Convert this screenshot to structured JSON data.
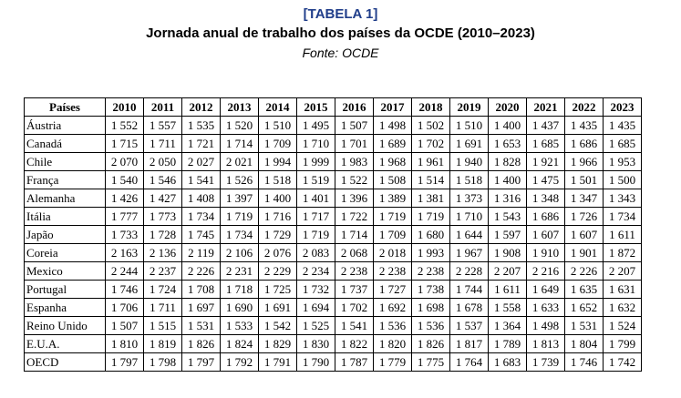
{
  "header": {
    "tag": "[TABELA 1]",
    "title": "Jornada anual de trabalho dos países da OCDE (2010–2023)",
    "source": "Fonte: OCDE"
  },
  "colors": {
    "tag": "#1f3d8a",
    "text": "#000000",
    "border": "#000000"
  },
  "table": {
    "country_header": "Países",
    "years": [
      "2010",
      "2011",
      "2012",
      "2013",
      "2014",
      "2015",
      "2016",
      "2017",
      "2018",
      "2019",
      "2020",
      "2021",
      "2022",
      "2023"
    ],
    "rows": [
      {
        "country": "Áustria",
        "values": [
          "1 552",
          "1 557",
          "1 535",
          "1 520",
          "1 510",
          "1 495",
          "1 507",
          "1 498",
          "1 502",
          "1 510",
          "1 400",
          "1 437",
          "1 435",
          "1 435"
        ]
      },
      {
        "country": "Canadá",
        "values": [
          "1 715",
          "1 711",
          "1 721",
          "1 714",
          "1 709",
          "1 710",
          "1 701",
          "1 689",
          "1 702",
          "1 691",
          "1 653",
          "1 685",
          "1 686",
          "1 685"
        ]
      },
      {
        "country": "Chile",
        "values": [
          "2 070",
          "2 050",
          "2 027",
          "2 021",
          "1 994",
          "1 999",
          "1 983",
          "1 968",
          "1 961",
          "1 940",
          "1 828",
          "1 921",
          "1 966",
          "1 953"
        ]
      },
      {
        "country": "França",
        "values": [
          "1 540",
          "1 546",
          "1 541",
          "1 526",
          "1 518",
          "1 519",
          "1 522",
          "1 508",
          "1 514",
          "1 518",
          "1 400",
          "1 475",
          "1 501",
          "1 500"
        ]
      },
      {
        "country": "Alemanha",
        "values": [
          "1 426",
          "1 427",
          "1 408",
          "1 397",
          "1 400",
          "1 401",
          "1 396",
          "1 389",
          "1 381",
          "1 373",
          "1 316",
          "1 348",
          "1 347",
          "1 343"
        ]
      },
      {
        "country": "Itália",
        "values": [
          "1 777",
          "1 773",
          "1 734",
          "1 719",
          "1 716",
          "1 717",
          "1 722",
          "1 719",
          "1 719",
          "1 710",
          "1 543",
          "1 686",
          "1 726",
          "1 734"
        ]
      },
      {
        "country": "Japão",
        "values": [
          "1 733",
          "1 728",
          "1 745",
          "1 734",
          "1 729",
          "1 719",
          "1 714",
          "1 709",
          "1 680",
          "1 644",
          "1 597",
          "1 607",
          "1 607",
          "1 611"
        ]
      },
      {
        "country": "Coreia",
        "values": [
          "2 163",
          "2 136",
          "2 119",
          "2 106",
          "2 076",
          "2 083",
          "2 068",
          "2 018",
          "1 993",
          "1 967",
          "1 908",
          "1 910",
          "1 901",
          "1 872"
        ]
      },
      {
        "country": "Mexico",
        "values": [
          "2 244",
          "2 237",
          "2 226",
          "2 231",
          "2 229",
          "2 234",
          "2 238",
          "2 238",
          "2 238",
          "2 228",
          "2 207",
          "2 216",
          "2 226",
          "2 207"
        ]
      },
      {
        "country": "Portugal",
        "values": [
          "1 746",
          "1 724",
          "1 708",
          "1 718",
          "1 725",
          "1 732",
          "1 737",
          "1 727",
          "1 738",
          "1 744",
          "1 611",
          "1 649",
          "1 635",
          "1 631"
        ]
      },
      {
        "country": "Espanha",
        "values": [
          "1 706",
          "1 711",
          "1 697",
          "1 690",
          "1 691",
          "1 694",
          "1 702",
          "1 692",
          "1 698",
          "1 678",
          "1 558",
          "1 633",
          "1 652",
          "1 632"
        ]
      },
      {
        "country": "Reino Unido",
        "values": [
          "1 507",
          "1 515",
          "1 531",
          "1 533",
          "1 542",
          "1 525",
          "1 541",
          "1 536",
          "1 536",
          "1 537",
          "1 364",
          "1 498",
          "1 531",
          "1 524"
        ]
      },
      {
        "country": "E.U.A.",
        "values": [
          "1 810",
          "1 819",
          "1 826",
          "1 824",
          "1 829",
          "1 830",
          "1 822",
          "1 820",
          "1 826",
          "1 817",
          "1 789",
          "1 813",
          "1 804",
          "1 799"
        ]
      },
      {
        "country": "OECD",
        "values": [
          "1 797",
          "1 798",
          "1 797",
          "1 792",
          "1 791",
          "1 790",
          "1 787",
          "1 779",
          "1 775",
          "1 764",
          "1 683",
          "1 739",
          "1 746",
          "1 742"
        ]
      }
    ]
  }
}
